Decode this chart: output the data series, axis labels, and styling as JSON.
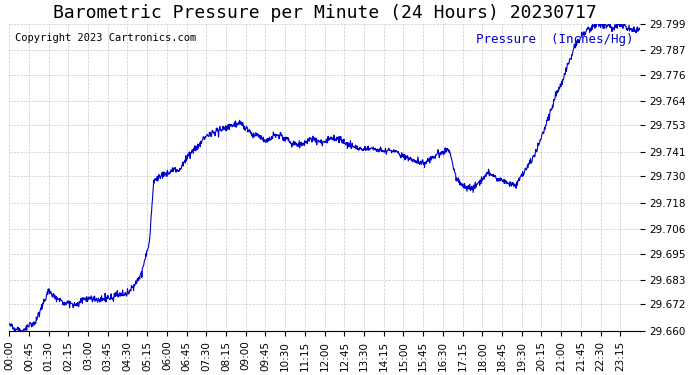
{
  "title": "Barometric Pressure per Minute (24 Hours) 20230717",
  "copyright_text": "Copyright 2023 Cartronics.com",
  "legend_label": "Pressure  (Inches/Hg)",
  "line_color": "#0000cc",
  "background_color": "#ffffff",
  "grid_color": "#bbbbbb",
  "ylim": [
    29.66,
    29.799
  ],
  "yticks": [
    29.66,
    29.672,
    29.683,
    29.695,
    29.706,
    29.718,
    29.73,
    29.741,
    29.753,
    29.764,
    29.776,
    29.787,
    29.799
  ],
  "xtick_labels": [
    "00:00",
    "00:45",
    "01:30",
    "02:15",
    "03:00",
    "03:45",
    "04:30",
    "05:15",
    "06:00",
    "06:45",
    "07:30",
    "08:15",
    "09:00",
    "09:45",
    "10:30",
    "11:15",
    "12:00",
    "12:45",
    "13:30",
    "14:15",
    "15:00",
    "15:45",
    "16:30",
    "17:15",
    "18:00",
    "18:45",
    "19:30",
    "20:15",
    "21:00",
    "21:45",
    "22:30",
    "23:15"
  ],
  "title_fontsize": 13,
  "tick_fontsize": 7.5,
  "legend_fontsize": 9,
  "copyright_fontsize": 7.5
}
